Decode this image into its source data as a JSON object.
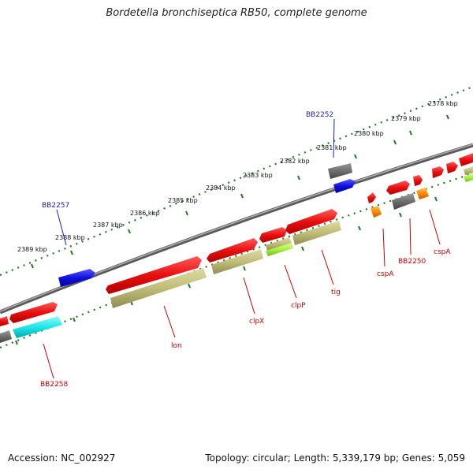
{
  "title": "Bordetella bronchiseptica RB50, complete genome",
  "footer": {
    "accession": "Accession: NC_002927",
    "summary": "Topology: circular; Length: 5,339,179 bp; Genes: 5,059"
  },
  "colors": {
    "backbone": "#8a8a8a",
    "tick_dots": "#1e7a1e",
    "forward_feature": "#e81010",
    "reverse_feature": "#c0bd7a",
    "gray_feature": "#6e6e6e",
    "blue_feature": "#1010e0",
    "cyan_feature": "#20e8e8",
    "orange_feature": "#ff8a00",
    "lime_feature": "#a8f040",
    "label_red": "#cc0000",
    "label_blue": "#1c1cb8"
  },
  "scale_labels": [
    "2378 kbp",
    "2379 kbp",
    "2380 kbp",
    "2381 kbp",
    "2382 kbp",
    "2383 kbp",
    "2384 kbp",
    "2385 kbp",
    "2386 kbp",
    "2387 kbp",
    "2388 kbp",
    "2389 kbp"
  ],
  "gene_labels": {
    "bb2252": "BB2252",
    "bb2257": "BB2257",
    "bb2258": "BB2258",
    "lon": "lon",
    "clpx": "clpX",
    "clpp": "clpP",
    "tig": "tig",
    "cspa1": "cspA",
    "bb2250": "BB2250",
    "cspa2": "cspA"
  }
}
